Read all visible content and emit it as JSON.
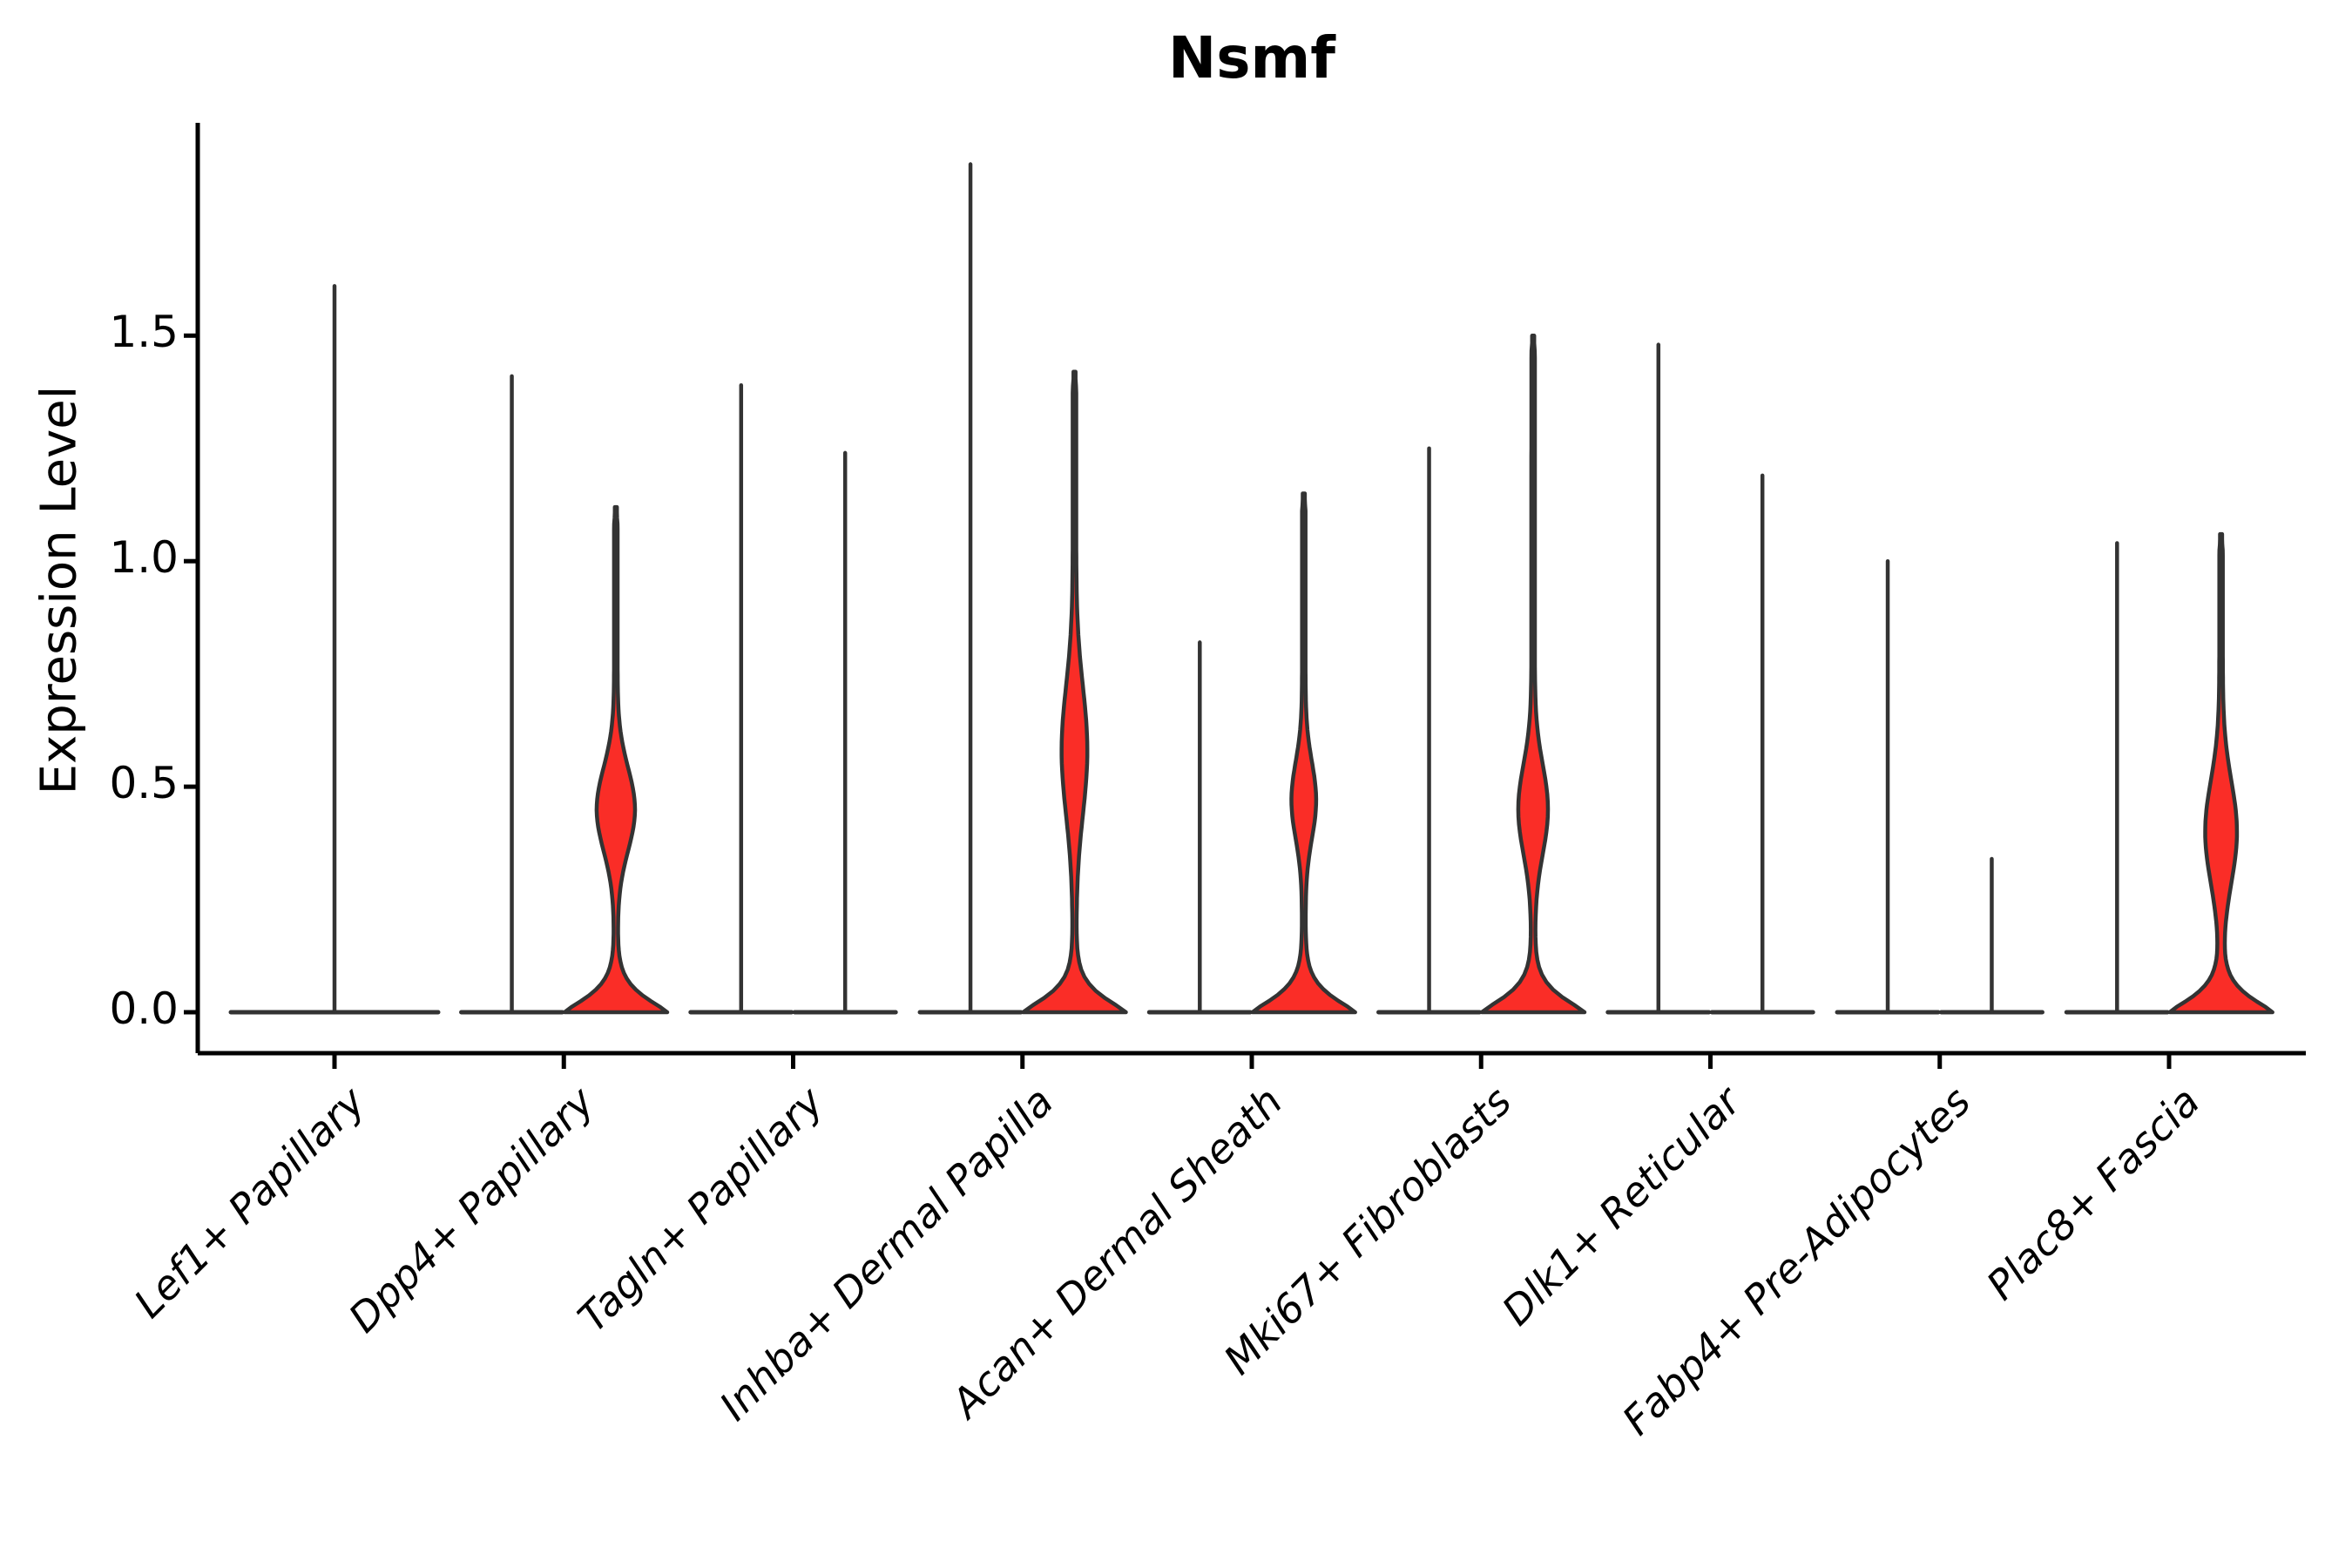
{
  "chart_data": {
    "type": "violin",
    "title": "Nsmf",
    "ylabel": "Expression Level",
    "xlabel": "",
    "yticks": [
      0.0,
      0.5,
      1.0,
      1.5
    ],
    "ytick_labels": [
      "0.0",
      "0.5",
      "1.0",
      "1.5"
    ],
    "ylim": [
      -0.09,
      1.97
    ],
    "legend": "none",
    "grid": false,
    "fill_color": "#fa2d27",
    "stroke_color": "#333333",
    "axis_color": "#000000",
    "categories": [
      "Lef1+ Papillary",
      "Dpp4+ Papillary",
      "Tagln+ Papillary",
      "Inhba+ Dermal Papilla",
      "Acan+ Dermal Sheath",
      "Mki67+ Fibroblasts",
      "Dlk1+ Reticular",
      "Fabp4+ Pre-Adipocytes",
      "Plac8+ Fascia"
    ],
    "groups": [
      {
        "category": "Lef1+ Papillary",
        "violins": [
          {
            "max": 1.61,
            "kind": "spike",
            "full_width": true
          }
        ]
      },
      {
        "category": "Dpp4+ Papillary",
        "violins": [
          {
            "max": 1.41,
            "kind": "spike"
          },
          {
            "max": 1.12,
            "kind": "density",
            "bulge_center": 0.45,
            "bulge_spread": 0.13,
            "bulge_rel_width": 0.345
          }
        ]
      },
      {
        "category": "Tagln+ Papillary",
        "violins": [
          {
            "max": 1.39,
            "kind": "spike"
          },
          {
            "max": 1.24,
            "kind": "spike"
          }
        ]
      },
      {
        "category": "Inhba+ Dermal Papilla",
        "violins": [
          {
            "max": 1.88,
            "kind": "spike"
          },
          {
            "max": 1.42,
            "kind": "density",
            "bulge_center": 0.58,
            "bulge_spread": 0.2,
            "bulge_rel_width": 0.22
          }
        ]
      },
      {
        "category": "Acan+ Dermal Sheath",
        "violins": [
          {
            "max": 0.82,
            "kind": "spike"
          },
          {
            "max": 1.15,
            "kind": "density",
            "bulge_center": 0.47,
            "bulge_spread": 0.12,
            "bulge_rel_width": 0.21
          }
        ]
      },
      {
        "category": "Mki67+ Fibroblasts",
        "violins": [
          {
            "max": 1.25,
            "kind": "spike"
          },
          {
            "max": 1.5,
            "kind": "density",
            "bulge_center": 0.45,
            "bulge_spread": 0.14,
            "bulge_rel_width": 0.26
          }
        ]
      },
      {
        "category": "Dlk1+ Reticular",
        "violins": [
          {
            "max": 1.48,
            "kind": "spike"
          },
          {
            "max": 1.19,
            "kind": "spike"
          }
        ]
      },
      {
        "category": "Fabp4+ Pre-Adipocytes",
        "violins": [
          {
            "max": 1.0,
            "kind": "spike"
          },
          {
            "max": 0.34,
            "kind": "spike"
          }
        ]
      },
      {
        "category": "Plac8+ Fascia",
        "violins": [
          {
            "max": 1.04,
            "kind": "spike"
          },
          {
            "max": 1.06,
            "kind": "density",
            "bulge_center": 0.4,
            "bulge_spread": 0.16,
            "bulge_rel_width": 0.28
          }
        ]
      }
    ]
  }
}
